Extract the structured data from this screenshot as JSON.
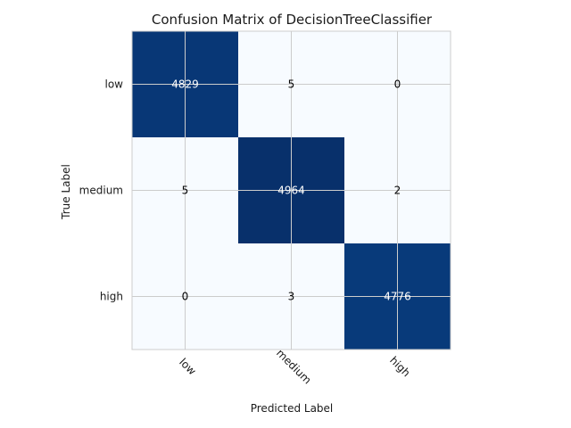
{
  "chart_data": {
    "type": "heatmap",
    "title": "Confusion Matrix of DecisionTreeClassifier",
    "xlabel": "Predicted Label",
    "ylabel": "True Label",
    "x_categories": [
      "low",
      "medium",
      "high"
    ],
    "y_categories": [
      "low",
      "medium",
      "high"
    ],
    "values": [
      [
        4829,
        5,
        0
      ],
      [
        5,
        4964,
        2
      ],
      [
        0,
        3,
        4776
      ]
    ],
    "colormap": "Blues",
    "grid": true,
    "colors": {
      "low": "#f7fbff",
      "high": "#08306b",
      "grid": "#cccccc",
      "text_dark": "#000000",
      "text_light": "#ffffff"
    }
  }
}
